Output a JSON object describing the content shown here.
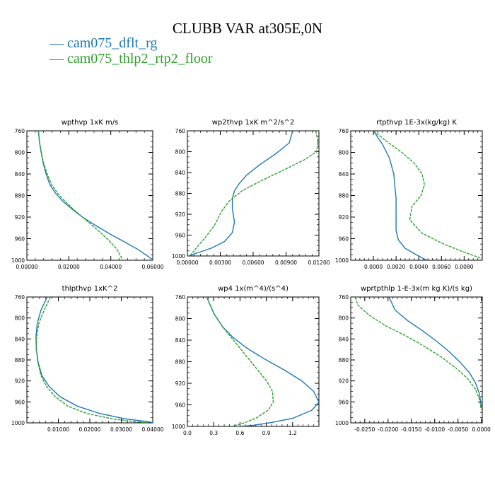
{
  "title": "CLUBB VAR at305E,0N",
  "colors": {
    "dflt": "#1f77b4",
    "floor": "#2ca02c"
  },
  "legend": [
    {
      "label": "cam075_dflt_rg",
      "color": "#1f77b4",
      "dash": false
    },
    {
      "label": "cam075_thlp2_rtp2_floor",
      "color": "#2ca02c",
      "dash": true
    }
  ],
  "chart_data": [
    {
      "type": "line",
      "title": "wpthvp  1xK m/s",
      "xlim": [
        0,
        0.06
      ],
      "ylim": [
        760,
        1000
      ],
      "y_inverted": true,
      "xticks": [
        "0.00000",
        "0.02000",
        "0.04000",
        "0.06000"
      ],
      "xtick_values": [
        0,
        0.02,
        0.04,
        0.06
      ],
      "yticks": [
        "760",
        "800",
        "840",
        "880",
        "920",
        "960",
        "1000"
      ],
      "ytick_values": [
        760,
        800,
        840,
        880,
        920,
        960,
        1000
      ],
      "series": [
        {
          "name": "cam075_dflt_rg",
          "x": [
            0.0055,
            0.006,
            0.0068,
            0.0078,
            0.0092,
            0.011,
            0.0135,
            0.017,
            0.0215,
            0.0265,
            0.0325,
            0.039,
            0.046,
            0.053,
            0.0585,
            0.0605
          ],
          "y": [
            760,
            780,
            800,
            820,
            840,
            860,
            875,
            890,
            905,
            920,
            935,
            950,
            965,
            980,
            995,
            1000
          ]
        },
        {
          "name": "cam075_thlp2_rtp2_floor",
          "x": [
            0.0055,
            0.006,
            0.0068,
            0.008,
            0.0097,
            0.0118,
            0.0145,
            0.018,
            0.022,
            0.0265,
            0.031,
            0.0355,
            0.0395,
            0.043,
            0.0455
          ],
          "y": [
            760,
            780,
            800,
            820,
            840,
            860,
            875,
            890,
            905,
            920,
            935,
            950,
            965,
            980,
            998
          ]
        }
      ]
    },
    {
      "type": "line",
      "title": "wp2thvp  1xK m^2/s^2",
      "xlim": [
        0,
        0.012
      ],
      "ylim": [
        760,
        1000
      ],
      "y_inverted": true,
      "xticks": [
        "0.00000",
        "0.00300",
        "0.00600",
        "0.00900",
        "0.01200"
      ],
      "xtick_values": [
        0,
        0.003,
        0.006,
        0.009,
        0.012
      ],
      "yticks": [
        "760",
        "800",
        "840",
        "880",
        "920",
        "960",
        "1000"
      ],
      "ytick_values": [
        760,
        800,
        840,
        880,
        920,
        960,
        1000
      ],
      "series": [
        {
          "name": "cam075_dflt_rg",
          "x": [
            0.0096,
            0.0093,
            0.008,
            0.0066,
            0.0054,
            0.0047,
            0.0043,
            0.0041,
            0.0041,
            0.0043,
            0.0041,
            0.0034,
            0.0022,
            0.0009,
            0.0001
          ],
          "y": [
            760,
            783,
            805,
            825,
            845,
            862,
            875,
            890,
            910,
            935,
            955,
            972,
            985,
            994,
            1000
          ]
        },
        {
          "name": "cam075_thlp2_rtp2_floor",
          "x": [
            0.0117,
            0.0119,
            0.0118,
            0.0107,
            0.0088,
            0.0068,
            0.005,
            0.0038,
            0.0031,
            0.0025,
            0.0018,
            0.001,
            0.0003
          ],
          "y": [
            760,
            780,
            800,
            815,
            835,
            855,
            875,
            895,
            915,
            940,
            960,
            980,
            998
          ]
        }
      ]
    },
    {
      "type": "line",
      "title": "rtpthvp  1E-3x(kg/kg) K",
      "xlim": [
        -0.002,
        0.0096
      ],
      "ylim": [
        760,
        1000
      ],
      "y_inverted": true,
      "xticks": [
        "0.0000",
        "0.0020",
        "0.0040",
        "0.0060",
        "0.0080"
      ],
      "xtick_values": [
        0,
        0.002,
        0.004,
        0.006,
        0.008
      ],
      "yticks": [
        "760",
        "800",
        "840",
        "880",
        "920",
        "960",
        "1000"
      ],
      "ytick_values": [
        760,
        800,
        840,
        880,
        920,
        960,
        1000
      ],
      "series": [
        {
          "name": "cam075_dflt_rg",
          "x": [
            0.0,
            0.0008,
            0.0014,
            0.0018,
            0.0019,
            0.002,
            0.002,
            0.002,
            0.002,
            0.0022,
            0.0028,
            0.0038,
            0.0047
          ],
          "y": [
            760,
            785,
            810,
            840,
            865,
            885,
            905,
            925,
            945,
            962,
            978,
            990,
            1000
          ]
        },
        {
          "name": "cam075_thlp2_rtp2_floor",
          "x": [
            0.0,
            0.0012,
            0.0025,
            0.0036,
            0.0043,
            0.0045,
            0.0042,
            0.0034,
            0.0032,
            0.0043,
            0.0062,
            0.008,
            0.0096
          ],
          "y": [
            760,
            780,
            800,
            820,
            840,
            860,
            880,
            900,
            925,
            950,
            970,
            985,
            997
          ]
        }
      ]
    },
    {
      "type": "line",
      "title": "thlpthvp  1xK^2",
      "xlim": [
        0,
        0.04
      ],
      "ylim": [
        760,
        1000
      ],
      "y_inverted": true,
      "xticks": [
        "0.01000",
        "0.02000",
        "0.03000",
        "0.04000"
      ],
      "xtick_values": [
        0.01,
        0.02,
        0.03,
        0.04
      ],
      "yticks": [
        "760",
        "800",
        "840",
        "880",
        "920",
        "960",
        "1000"
      ],
      "ytick_values": [
        760,
        800,
        840,
        880,
        920,
        960,
        1000
      ],
      "series": [
        {
          "name": "cam075_dflt_rg",
          "x": [
            0.0065,
            0.0045,
            0.0033,
            0.0029,
            0.003,
            0.0036,
            0.0048,
            0.007,
            0.0105,
            0.016,
            0.023,
            0.031,
            0.0385,
            0.0405
          ],
          "y": [
            760,
            785,
            810,
            835,
            860,
            885,
            910,
            930,
            950,
            968,
            982,
            992,
            998,
            1000
          ]
        },
        {
          "name": "cam075_thlp2_rtp2_floor",
          "x": [
            0.0075,
            0.0055,
            0.0038,
            0.0031,
            0.003,
            0.0035,
            0.0045,
            0.0062,
            0.009,
            0.013,
            0.019,
            0.027,
            0.0345,
            0.0385
          ],
          "y": [
            760,
            785,
            810,
            835,
            860,
            885,
            910,
            930,
            950,
            968,
            982,
            992,
            998,
            1000
          ]
        }
      ]
    },
    {
      "type": "line",
      "title": "wp4  1x(m^4)/(s^4)",
      "xlim": [
        0,
        1.5
      ],
      "ylim": [
        760,
        1000
      ],
      "y_inverted": true,
      "xticks": [
        "0.0",
        "0.3",
        "0.6",
        "0.9",
        "1.2"
      ],
      "xtick_values": [
        0,
        0.3,
        0.6,
        0.9,
        1.2
      ],
      "yticks": [
        "760",
        "800",
        "840",
        "880",
        "920",
        "960",
        "1000"
      ],
      "ytick_values": [
        760,
        800,
        840,
        880,
        920,
        960,
        1000
      ],
      "series": [
        {
          "name": "cam075_dflt_rg",
          "x": [
            0.22,
            0.3,
            0.4,
            0.52,
            0.68,
            0.88,
            1.1,
            1.3,
            1.44,
            1.5,
            1.42,
            1.2,
            0.95,
            0.75,
            0.6
          ],
          "y": [
            760,
            790,
            815,
            835,
            855,
            875,
            895,
            915,
            935,
            955,
            970,
            985,
            993,
            998,
            1000
          ]
        },
        {
          "name": "cam075_thlp2_rtp2_floor",
          "x": [
            0.22,
            0.3,
            0.4,
            0.5,
            0.6,
            0.7,
            0.8,
            0.9,
            0.97,
            0.98,
            0.92,
            0.78,
            0.62,
            0.5
          ],
          "y": [
            760,
            790,
            815,
            835,
            855,
            875,
            895,
            915,
            935,
            955,
            970,
            985,
            995,
            1000
          ]
        }
      ]
    },
    {
      "type": "line",
      "title": "wprtpthlp  1-E-3x(m kg K)/(s kg)",
      "xlim": [
        -0.028,
        0.0002
      ],
      "ylim": [
        760,
        1000
      ],
      "y_inverted": true,
      "xticks": [
        "-0.0250",
        "-0.0200",
        "-0.0150",
        "-0.0100",
        "-0.0050",
        "0.0000"
      ],
      "xtick_values": [
        -0.025,
        -0.02,
        -0.015,
        -0.01,
        -0.005,
        0
      ],
      "yticks": [
        "760",
        "800",
        "840",
        "880",
        "920",
        "960",
        "1000"
      ],
      "ytick_values": [
        760,
        800,
        840,
        880,
        920,
        960,
        1000
      ],
      "series": [
        {
          "name": "cam075_dflt_rg",
          "x": [
            -0.0198,
            -0.0185,
            -0.0158,
            -0.0125,
            -0.0095,
            -0.0068,
            -0.0045,
            -0.0025,
            -0.0012,
            -0.0004,
            0.0
          ],
          "y": [
            760,
            785,
            805,
            825,
            845,
            865,
            885,
            905,
            925,
            945,
            970
          ]
        },
        {
          "name": "cam075_thlp2_rtp2_floor",
          "x": [
            -0.027,
            -0.0265,
            -0.024,
            -0.0205,
            -0.016,
            -0.012,
            -0.0085,
            -0.0055,
            -0.003,
            -0.0013,
            -0.0004,
            0.0
          ],
          "y": [
            760,
            775,
            795,
            815,
            835,
            855,
            875,
            895,
            915,
            935,
            955,
            975
          ]
        }
      ]
    }
  ]
}
